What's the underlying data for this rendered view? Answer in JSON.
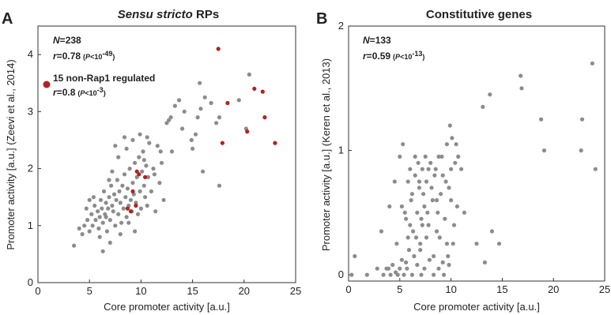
{
  "chart_data": [
    {
      "type": "scatter",
      "panel": "A",
      "title_italic": "Sensu stricto",
      "title_rest": " RPs",
      "xlabel": "Core promoter activity [a.u.]",
      "ylabel": "Promoter activity [a.u.]  (Zeevi et al., 2014)",
      "xlim": [
        0,
        25
      ],
      "ylim": [
        0,
        4.5
      ],
      "xticks": [
        0,
        5,
        10,
        15,
        20,
        25
      ],
      "yticks": [
        0,
        1,
        2,
        3,
        4
      ],
      "colors": {
        "main": "#8c8c8c",
        "highlight": "#b22222"
      },
      "stats": {
        "n": "238",
        "r": "0.78",
        "p": "10",
        "p_exp": "-49",
        "subset_label": "15 non-Rap1 regulated",
        "subset_r": "0.8",
        "subset_p": "10",
        "subset_p_exp": "-3"
      },
      "series": [
        {
          "role": "main",
          "points": [
            [
              3.5,
              0.65
            ],
            [
              4.0,
              0.95
            ],
            [
              4.3,
              0.85
            ],
            [
              4.5,
              1.0
            ],
            [
              4.8,
              1.1
            ],
            [
              5.0,
              0.9
            ],
            [
              5.2,
              1.2
            ],
            [
              5.3,
              1.0
            ],
            [
              5.5,
              1.35
            ],
            [
              5.6,
              1.1
            ],
            [
              5.8,
              1.25
            ],
            [
              5.9,
              0.95
            ],
            [
              6.0,
              1.15
            ],
            [
              6.1,
              1.45
            ],
            [
              6.2,
              1.3
            ],
            [
              6.3,
              1.05
            ],
            [
              6.4,
              1.6
            ],
            [
              6.5,
              1.2
            ],
            [
              6.6,
              1.4
            ],
            [
              6.7,
              0.9
            ],
            [
              6.8,
              1.3
            ],
            [
              6.9,
              1.5
            ],
            [
              7.0,
              1.1
            ],
            [
              7.1,
              1.7
            ],
            [
              7.2,
              1.35
            ],
            [
              7.3,
              1.25
            ],
            [
              7.4,
              1.55
            ],
            [
              7.5,
              1.0
            ],
            [
              7.6,
              1.45
            ],
            [
              7.7,
              1.8
            ],
            [
              7.8,
              1.2
            ],
            [
              7.9,
              1.6
            ],
            [
              8.0,
              1.4
            ],
            [
              8.1,
              1.05
            ],
            [
              8.2,
              1.7
            ],
            [
              8.3,
              1.3
            ],
            [
              8.4,
              1.9
            ],
            [
              8.5,
              1.5
            ],
            [
              8.6,
              1.15
            ],
            [
              8.7,
              1.65
            ],
            [
              8.8,
              1.35
            ],
            [
              8.9,
              2.0
            ],
            [
              9.0,
              1.45
            ],
            [
              9.1,
              1.25
            ],
            [
              9.2,
              1.75
            ],
            [
              9.3,
              1.55
            ],
            [
              9.4,
              2.1
            ],
            [
              9.5,
              1.4
            ],
            [
              9.6,
              1.85
            ],
            [
              9.7,
              1.2
            ],
            [
              9.8,
              2.2
            ],
            [
              9.9,
              1.6
            ],
            [
              10.0,
              1.3
            ],
            [
              10.1,
              1.95
            ],
            [
              10.2,
              2.3
            ],
            [
              10.3,
              1.7
            ],
            [
              10.4,
              1.5
            ],
            [
              10.5,
              2.05
            ],
            [
              10.6,
              1.35
            ],
            [
              10.7,
              1.85
            ],
            [
              10.8,
              2.45
            ],
            [
              11.0,
              1.6
            ],
            [
              11.2,
              2.0
            ],
            [
              11.4,
              1.25
            ],
            [
              11.6,
              2.4
            ],
            [
              11.8,
              1.75
            ],
            [
              12.0,
              2.1
            ],
            [
              12.2,
              1.45
            ],
            [
              5.4,
              1.5
            ],
            [
              6.0,
              0.8
            ],
            [
              6.6,
              1.15
            ],
            [
              7.2,
              1.95
            ],
            [
              7.8,
              2.2
            ],
            [
              8.4,
              2.55
            ],
            [
              8.0,
              0.85
            ],
            [
              7.0,
              0.7
            ],
            [
              6.3,
              0.55
            ],
            [
              8.8,
              1.05
            ],
            [
              9.4,
              0.9
            ],
            [
              9.9,
              2.6
            ],
            [
              10.6,
              2.55
            ],
            [
              11.9,
              2.3
            ],
            [
              5.0,
              1.45
            ],
            [
              4.7,
              1.3
            ],
            [
              6.9,
              1.8
            ],
            [
              7.5,
              2.4
            ],
            [
              8.6,
              2.35
            ],
            [
              9.2,
              2.5
            ],
            [
              10.3,
              2.15
            ],
            [
              11.3,
              1.9
            ],
            [
              12.5,
              2.8
            ],
            [
              12.9,
              2.9
            ],
            [
              13.3,
              3.1
            ],
            [
              13.7,
              3.2
            ],
            [
              14.2,
              3.0
            ],
            [
              15.3,
              2.6
            ],
            [
              15.5,
              2.9
            ],
            [
              15.8,
              3.05
            ],
            [
              16.2,
              3.25
            ],
            [
              16.8,
              3.15
            ],
            [
              17.3,
              2.8
            ],
            [
              17.6,
              2.9
            ],
            [
              15.7,
              3.5
            ],
            [
              14.9,
              2.5
            ],
            [
              15.0,
              2.35
            ],
            [
              16.0,
              1.95
            ],
            [
              17.6,
              1.7
            ],
            [
              19.5,
              3.2
            ],
            [
              20.5,
              3.65
            ],
            [
              20.2,
              2.7
            ],
            [
              13.0,
              2.3
            ],
            [
              14.0,
              2.7
            ],
            [
              12.7,
              2.85
            ]
          ]
        },
        {
          "role": "highlight",
          "points": [
            [
              17.5,
              4.1
            ],
            [
              21.0,
              3.4
            ],
            [
              21.8,
              3.35
            ],
            [
              18.4,
              3.15
            ],
            [
              22.0,
              2.9
            ],
            [
              20.3,
              2.65
            ],
            [
              23.0,
              2.45
            ],
            [
              17.9,
              2.45
            ],
            [
              9.6,
              1.95
            ],
            [
              10.4,
              1.85
            ],
            [
              9.2,
              1.6
            ],
            [
              9.0,
              1.25
            ],
            [
              9.5,
              1.35
            ],
            [
              8.7,
              1.3
            ],
            [
              9.8,
              1.9
            ]
          ]
        }
      ]
    },
    {
      "type": "scatter",
      "panel": "B",
      "title": "Constitutive genes",
      "xlabel": "Core promoter activity [a.u.]",
      "ylabel": "Promoter activity [a.u.]  (Keren et al., 2013)",
      "xlim": [
        0,
        25
      ],
      "ylim": [
        -0.05,
        2
      ],
      "xticks": [
        0,
        5,
        10,
        15,
        20,
        25
      ],
      "yticks": [
        0,
        1,
        2
      ],
      "colors": {
        "main": "#8c8c8c"
      },
      "stats": {
        "n": "133",
        "r": "0.59",
        "p": "10",
        "p_exp": "-13"
      },
      "series": [
        {
          "role": "main",
          "points": [
            [
              0.3,
              0.0
            ],
            [
              0.6,
              0.15
            ],
            [
              1.8,
              0.0
            ],
            [
              2.8,
              0.05
            ],
            [
              3.4,
              0.0
            ],
            [
              3.7,
              0.05
            ],
            [
              4.1,
              0.0
            ],
            [
              4.3,
              0.08
            ],
            [
              4.6,
              0.02
            ],
            [
              5.0,
              0.05
            ],
            [
              5.2,
              0.12
            ],
            [
              5.4,
              0.0
            ],
            [
              5.7,
              0.05
            ],
            [
              6.2,
              0.0
            ],
            [
              6.7,
              0.08
            ],
            [
              7.1,
              0.0
            ],
            [
              7.4,
              0.05
            ],
            [
              7.9,
              0.12
            ],
            [
              8.3,
              0.0
            ],
            [
              8.8,
              0.05
            ],
            [
              9.3,
              0.0
            ],
            [
              9.8,
              0.08
            ],
            [
              3.2,
              0.35
            ],
            [
              4.7,
              0.25
            ],
            [
              5.2,
              0.55
            ],
            [
              5.6,
              0.45
            ],
            [
              5.8,
              0.3
            ],
            [
              6.1,
              0.6
            ],
            [
              6.3,
              0.35
            ],
            [
              6.5,
              0.8
            ],
            [
              6.7,
              0.5
            ],
            [
              6.9,
              0.7
            ],
            [
              7.0,
              0.25
            ],
            [
              7.2,
              0.85
            ],
            [
              7.4,
              0.55
            ],
            [
              7.6,
              0.75
            ],
            [
              7.8,
              0.4
            ],
            [
              8.0,
              0.9
            ],
            [
              8.2,
              0.6
            ],
            [
              8.4,
              0.8
            ],
            [
              8.6,
              0.35
            ],
            [
              8.8,
              0.95
            ],
            [
              9.0,
              0.65
            ],
            [
              9.2,
              0.8
            ],
            [
              9.4,
              0.45
            ],
            [
              9.6,
              1.05
            ],
            [
              9.8,
              0.7
            ],
            [
              10.0,
              0.85
            ],
            [
              10.2,
              0.25
            ],
            [
              10.4,
              0.9
            ],
            [
              10.6,
              0.55
            ],
            [
              6.4,
              0.15
            ],
            [
              7.0,
              0.2
            ],
            [
              5.5,
              0.5
            ],
            [
              6.0,
              0.85
            ],
            [
              6.8,
              0.9
            ],
            [
              7.5,
              0.95
            ],
            [
              8.1,
              0.7
            ],
            [
              8.7,
              0.5
            ],
            [
              9.1,
              0.95
            ],
            [
              9.7,
              0.15
            ],
            [
              10.1,
              1.1
            ],
            [
              10.3,
              0.4
            ],
            [
              6.6,
              0.3
            ],
            [
              7.3,
              0.65
            ],
            [
              5.0,
              0.95
            ],
            [
              4.5,
              0.75
            ],
            [
              4.0,
              0.55
            ],
            [
              5.9,
              0.2
            ],
            [
              7.7,
              0.5
            ],
            [
              8.5,
              0.85
            ],
            [
              9.5,
              0.75
            ],
            [
              10.5,
              1.05
            ],
            [
              6.2,
              0.65
            ],
            [
              7.1,
              0.45
            ],
            [
              8.9,
              0.3
            ],
            [
              5.3,
              1.05
            ],
            [
              6.9,
              0.75
            ],
            [
              7.8,
              0.85
            ],
            [
              9.9,
              1.2
            ],
            [
              10.7,
              0.95
            ],
            [
              11.3,
              0.5
            ],
            [
              12.5,
              0.25
            ],
            [
              13.1,
              1.35
            ],
            [
              13.3,
              0.1
            ],
            [
              13.8,
              1.45
            ],
            [
              14.0,
              0.35
            ],
            [
              14.7,
              0.25
            ],
            [
              16.8,
              1.6
            ],
            [
              16.9,
              1.5
            ],
            [
              18.8,
              1.25
            ],
            [
              19.1,
              1.0
            ],
            [
              22.8,
              1.25
            ],
            [
              22.7,
              1.0
            ],
            [
              23.8,
              1.7
            ],
            [
              24.1,
              0.85
            ],
            [
              8.3,
              0.15
            ],
            [
              6.5,
              0.95
            ],
            [
              5.8,
              0.75
            ],
            [
              7.6,
              0.3
            ],
            [
              9.2,
              0.1
            ],
            [
              8.6,
              0.6
            ],
            [
              7.2,
              0.4
            ],
            [
              6.0,
              0.4
            ],
            [
              5.6,
              0.1
            ],
            [
              4.8,
              0.0
            ],
            [
              3.9,
              0.05
            ],
            [
              9.6,
              0.25
            ],
            [
              10.0,
              0.6
            ],
            [
              11.0,
              0.85
            ]
          ]
        }
      ]
    }
  ]
}
